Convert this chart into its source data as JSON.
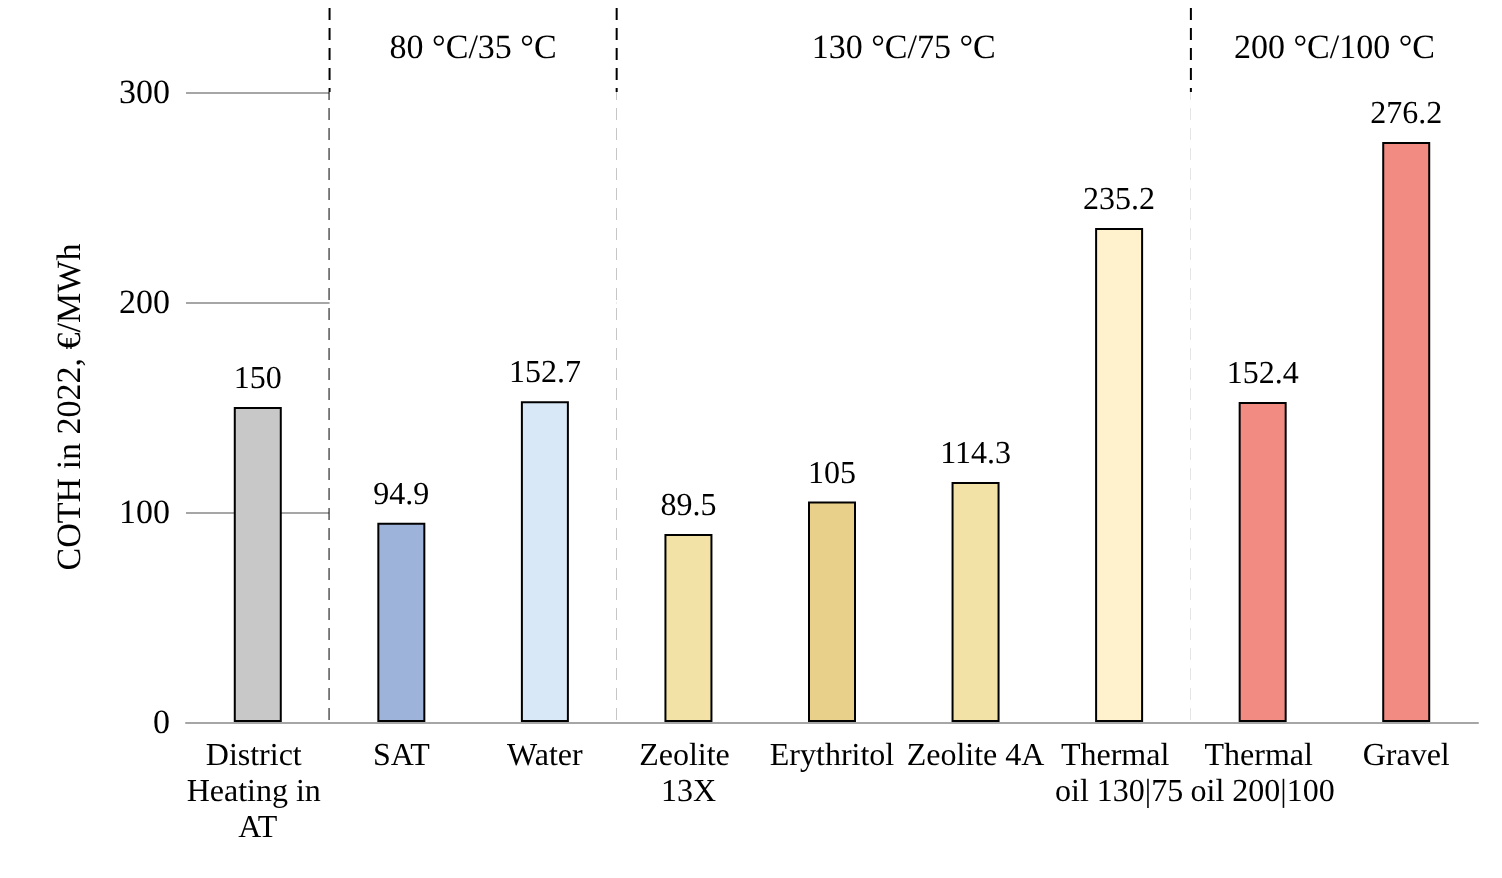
{
  "chart_data": {
    "type": "bar",
    "ylabel": "COTH in 2022, €/MWh",
    "categories": [
      "District Heating in AT",
      "SAT",
      "Water",
      "Zeolite 13X",
      "Erythritol",
      "Zeolite 4A",
      "Thermal oil 130|75",
      "Thermal oil 200|100",
      "Gravel"
    ],
    "values": [
      150,
      94.9,
      152.7,
      89.5,
      105,
      114.3,
      235.2,
      152.4,
      276.2
    ],
    "colors": [
      "#c8c8c8",
      "#9db3d9",
      "#d9e8f6",
      "#f3e2a6",
      "#e8d08a",
      "#f3e2a6",
      "#fff2cc",
      "#f28b82",
      "#f28b82"
    ],
    "ylim": [
      0,
      300
    ],
    "yticks": [
      0,
      100,
      200,
      300
    ],
    "grid": "y",
    "data_labels": true,
    "bands": [
      {
        "axis": "x",
        "from": "SAT",
        "to": "Water",
        "label": "80 °C/35 °C",
        "color": "#ffffff"
      },
      {
        "axis": "x",
        "from": "Zeolite 13X",
        "to": "Thermal oil 130|75",
        "label": "130 °C/75 °C",
        "color": "#ffffff"
      },
      {
        "axis": "x",
        "from": "Thermal oil 200|100",
        "to": "Gravel",
        "label": "200 °C/100 °C",
        "color": "#ffffff"
      }
    ]
  }
}
